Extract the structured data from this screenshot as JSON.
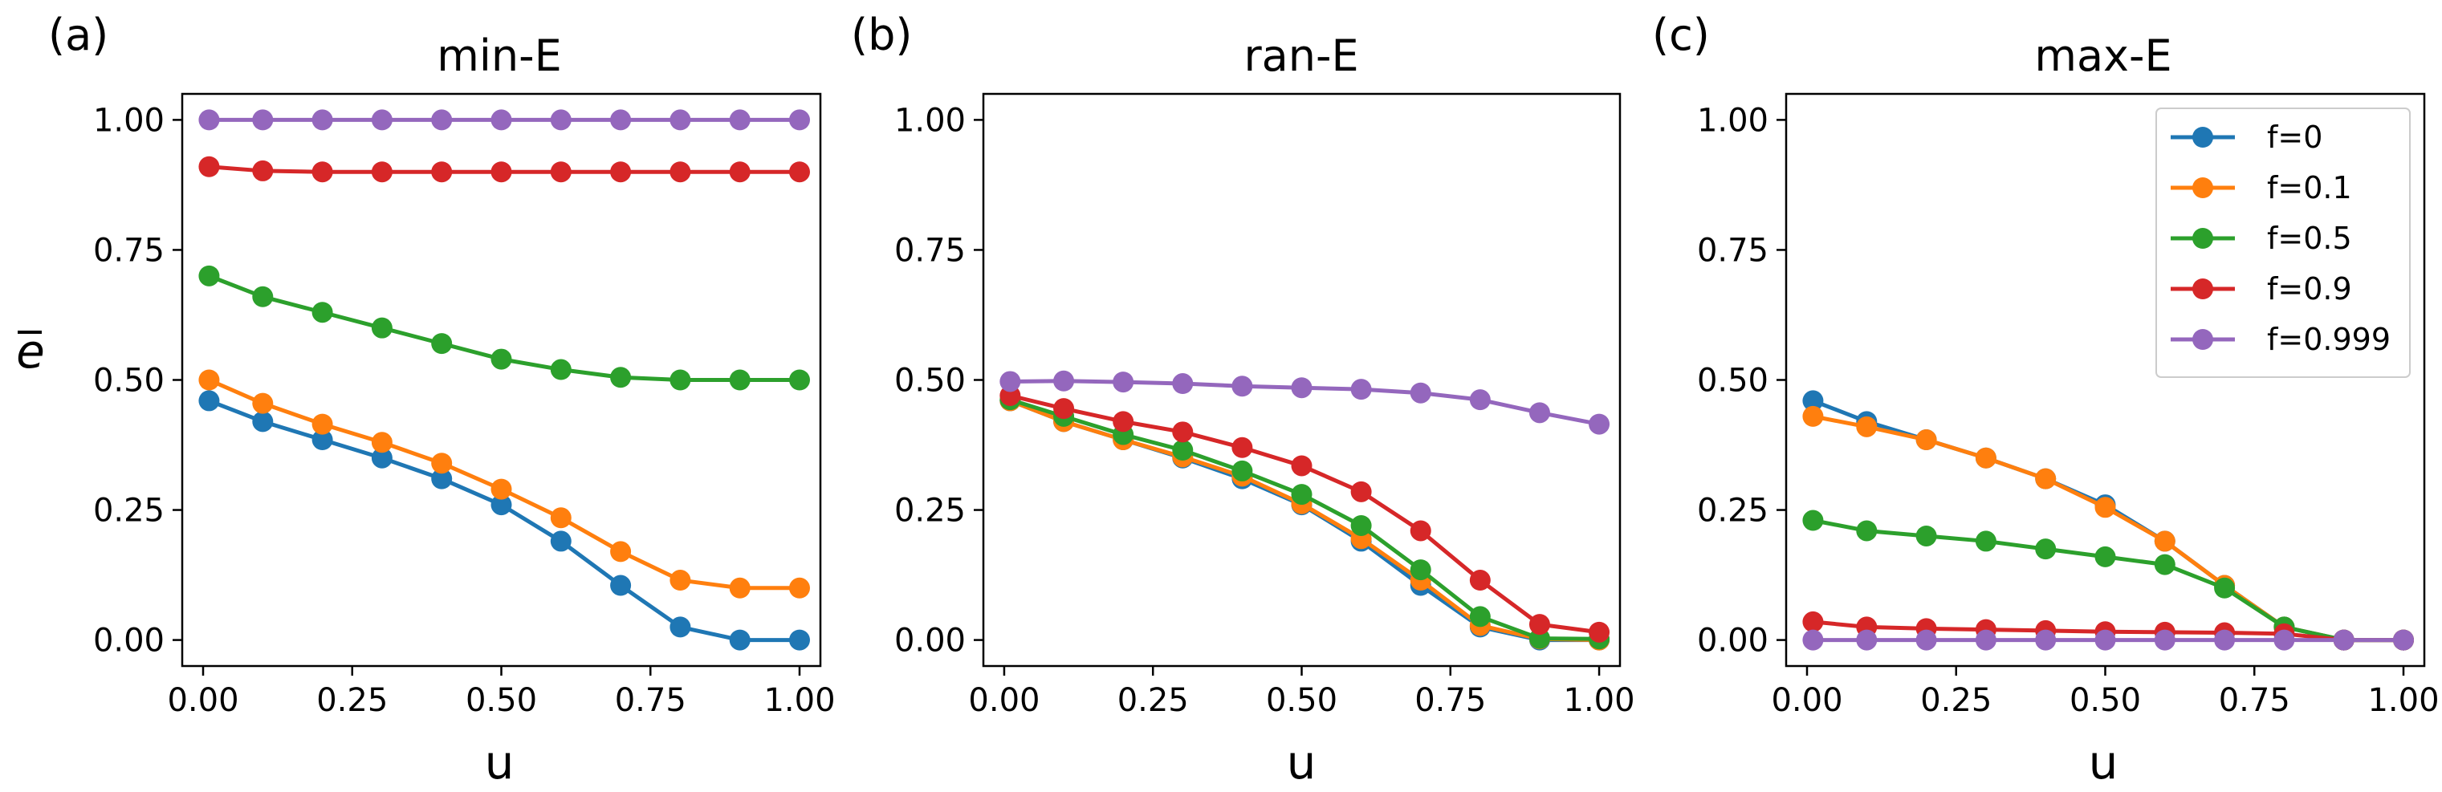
{
  "figure": {
    "ylabel": "e",
    "xlabel": "u",
    "colors": {
      "f=0": "#1f77b4",
      "f=0.1": "#ff7f0e",
      "f=0.5": "#2ca02c",
      "f=0.9": "#d62728",
      "f=0.999": "#9467bd"
    }
  },
  "chart_data": [
    {
      "type": "line",
      "panel_label": "(a)",
      "title": "min-E",
      "xlabel": "u",
      "ylabel": "e",
      "xlim": [
        -0.035,
        1.035
      ],
      "ylim": [
        -0.05,
        1.05
      ],
      "xticks": [
        "0.00",
        "0.25",
        "0.50",
        "0.75",
        "1.00"
      ],
      "yticks": [
        "0.00",
        "0.25",
        "0.50",
        "0.75",
        "1.00"
      ],
      "legend": false,
      "x": [
        0.01,
        0.1,
        0.2,
        0.3,
        0.4,
        0.5,
        0.6,
        0.7,
        0.8,
        0.9,
        1.0
      ],
      "series": [
        {
          "name": "f=0",
          "values": [
            0.46,
            0.42,
            0.385,
            0.35,
            0.31,
            0.26,
            0.19,
            0.105,
            0.025,
            0.0,
            0.0
          ]
        },
        {
          "name": "f=0.1",
          "values": [
            0.5,
            0.455,
            0.415,
            0.38,
            0.34,
            0.29,
            0.235,
            0.17,
            0.115,
            0.1,
            0.1
          ]
        },
        {
          "name": "f=0.5",
          "values": [
            0.7,
            0.66,
            0.63,
            0.6,
            0.57,
            0.54,
            0.52,
            0.505,
            0.5,
            0.5,
            0.5
          ]
        },
        {
          "name": "f=0.9",
          "values": [
            0.91,
            0.902,
            0.9,
            0.9,
            0.9,
            0.9,
            0.9,
            0.9,
            0.9,
            0.9,
            0.9
          ]
        },
        {
          "name": "f=0.999",
          "values": [
            1.0,
            1.0,
            1.0,
            1.0,
            1.0,
            1.0,
            1.0,
            1.0,
            1.0,
            1.0,
            1.0
          ]
        }
      ]
    },
    {
      "type": "line",
      "panel_label": "(b)",
      "title": "ran-E",
      "xlabel": "u",
      "ylabel": "",
      "xlim": [
        -0.035,
        1.035
      ],
      "ylim": [
        -0.05,
        1.05
      ],
      "xticks": [
        "0.00",
        "0.25",
        "0.50",
        "0.75",
        "1.00"
      ],
      "yticks": [
        "0.00",
        "0.25",
        "0.50",
        "0.75",
        "1.00"
      ],
      "legend": false,
      "x": [
        0.01,
        0.1,
        0.2,
        0.3,
        0.4,
        0.5,
        0.6,
        0.7,
        0.8,
        0.9,
        1.0
      ],
      "series": [
        {
          "name": "f=0",
          "values": [
            0.46,
            0.42,
            0.385,
            0.35,
            0.31,
            0.26,
            0.19,
            0.105,
            0.025,
            0.0,
            0.0
          ]
        },
        {
          "name": "f=0.1",
          "values": [
            0.46,
            0.42,
            0.385,
            0.352,
            0.315,
            0.262,
            0.195,
            0.115,
            0.028,
            0.002,
            0.0
          ]
        },
        {
          "name": "f=0.5",
          "values": [
            0.462,
            0.43,
            0.395,
            0.365,
            0.325,
            0.28,
            0.22,
            0.135,
            0.045,
            0.003,
            0.002
          ]
        },
        {
          "name": "f=0.9",
          "values": [
            0.47,
            0.445,
            0.42,
            0.4,
            0.37,
            0.335,
            0.285,
            0.21,
            0.115,
            0.03,
            0.015
          ]
        },
        {
          "name": "f=0.999",
          "values": [
            0.497,
            0.498,
            0.496,
            0.493,
            0.488,
            0.485,
            0.482,
            0.475,
            0.462,
            0.437,
            0.415
          ]
        }
      ]
    },
    {
      "type": "line",
      "panel_label": "(c)",
      "title": "max-E",
      "xlabel": "u",
      "ylabel": "",
      "xlim": [
        -0.035,
        1.035
      ],
      "ylim": [
        -0.05,
        1.05
      ],
      "xticks": [
        "0.00",
        "0.25",
        "0.50",
        "0.75",
        "1.00"
      ],
      "yticks": [
        "0.00",
        "0.25",
        "0.50",
        "0.75",
        "1.00"
      ],
      "legend": true,
      "legend_position": "top-right",
      "x": [
        0.01,
        0.1,
        0.2,
        0.3,
        0.4,
        0.5,
        0.6,
        0.7,
        0.8,
        0.9,
        1.0
      ],
      "series": [
        {
          "name": "f=0",
          "values": [
            0.46,
            0.42,
            0.385,
            0.35,
            0.31,
            0.26,
            0.19,
            0.105,
            0.025,
            0.0,
            0.0
          ]
        },
        {
          "name": "f=0.1",
          "values": [
            0.43,
            0.41,
            0.385,
            0.35,
            0.31,
            0.255,
            0.19,
            0.105,
            0.025,
            0.0,
            0.0
          ]
        },
        {
          "name": "f=0.5",
          "values": [
            0.23,
            0.21,
            0.2,
            0.19,
            0.175,
            0.16,
            0.145,
            0.1,
            0.025,
            0.0,
            0.0
          ]
        },
        {
          "name": "f=0.9",
          "values": [
            0.035,
            0.025,
            0.022,
            0.02,
            0.018,
            0.016,
            0.015,
            0.014,
            0.012,
            0.0,
            0.0
          ]
        },
        {
          "name": "f=0.999",
          "values": [
            0.0,
            0.0,
            0.0,
            0.0,
            0.0,
            0.0,
            0.0,
            0.0,
            0.0,
            0.0,
            0.0
          ]
        }
      ]
    }
  ]
}
